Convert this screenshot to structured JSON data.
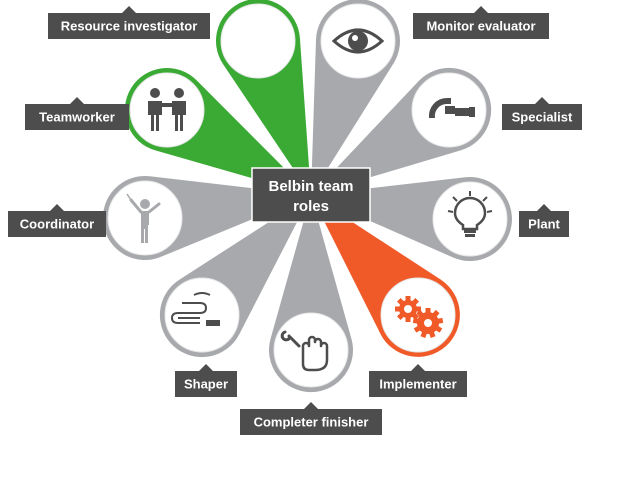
{
  "title": "Belbin team roles",
  "title_lines": [
    "Belbin team",
    "roles"
  ],
  "colors": {
    "green": "#3aaa35",
    "grey": "#a7a9ac",
    "orange": "#f05a28",
    "label_bg": "#4d4d4d",
    "center_bg": "#4d4d4d"
  },
  "roles": [
    {
      "id": "resource-investigator",
      "label": "Resource investigator",
      "icon": "phone-icon",
      "color": "green"
    },
    {
      "id": "monitor-evaluator",
      "label": "Monitor evaluator",
      "icon": "eye-icon",
      "color": "grey"
    },
    {
      "id": "teamworker",
      "label": "Teamworker",
      "icon": "people-icon",
      "color": "green"
    },
    {
      "id": "specialist",
      "label": "Specialist",
      "icon": "micrometer-icon",
      "color": "grey"
    },
    {
      "id": "coordinator",
      "label": "Coordinator",
      "icon": "conductor-icon",
      "color": "grey"
    },
    {
      "id": "plant",
      "label": "Plant",
      "icon": "lightbulb-icon",
      "color": "grey"
    },
    {
      "id": "shaper",
      "label": "Shaper",
      "icon": "spring-icon",
      "color": "grey"
    },
    {
      "id": "implementer",
      "label": "Implementer",
      "icon": "gears-icon",
      "color": "orange"
    },
    {
      "id": "completer-finisher",
      "label": "Completer finisher",
      "icon": "glove-icon",
      "color": "grey"
    }
  ]
}
